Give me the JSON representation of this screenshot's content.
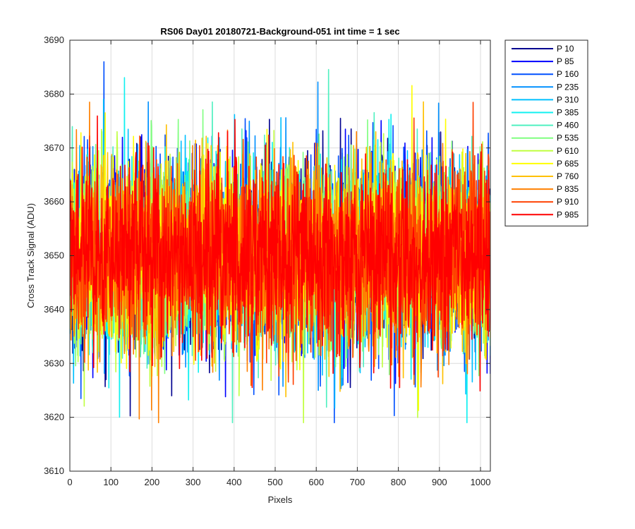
{
  "chart_data": {
    "type": "line",
    "title": "RS06 Day01 20180721-Background-051 int time = 1 sec",
    "xlabel": "Pixels",
    "ylabel": "Cross Track Signal (ADU)",
    "xlim": [
      0,
      1024
    ],
    "ylim": [
      3610,
      3690
    ],
    "xticks": [
      0,
      100,
      200,
      300,
      400,
      500,
      600,
      700,
      800,
      900,
      1000
    ],
    "yticks": [
      3610,
      3620,
      3630,
      3640,
      3650,
      3660,
      3670,
      3680,
      3690
    ],
    "grid": true,
    "legend_position": "outside-top-right",
    "n_points_per_series": 1024,
    "series_mean": 3650,
    "approx_range": [
      3619,
      3686
    ],
    "series": [
      {
        "name": "P 10",
        "color": "#00008F"
      },
      {
        "name": "P 85",
        "color": "#0000FF"
      },
      {
        "name": "P 160",
        "color": "#0050FF"
      },
      {
        "name": "P 235",
        "color": "#0090FF"
      },
      {
        "name": "P 310",
        "color": "#00C0FF"
      },
      {
        "name": "P 385",
        "color": "#10F0F0"
      },
      {
        "name": "P 460",
        "color": "#50F0C0"
      },
      {
        "name": "P 535",
        "color": "#80FF80"
      },
      {
        "name": "P 610",
        "color": "#C0FF40"
      },
      {
        "name": "P 685",
        "color": "#FFFF00"
      },
      {
        "name": "P 760",
        "color": "#FFC000"
      },
      {
        "name": "P 835",
        "color": "#FF8000"
      },
      {
        "name": "P 910",
        "color": "#FF4000"
      },
      {
        "name": "P 985",
        "color": "#FF0000"
      }
    ]
  }
}
